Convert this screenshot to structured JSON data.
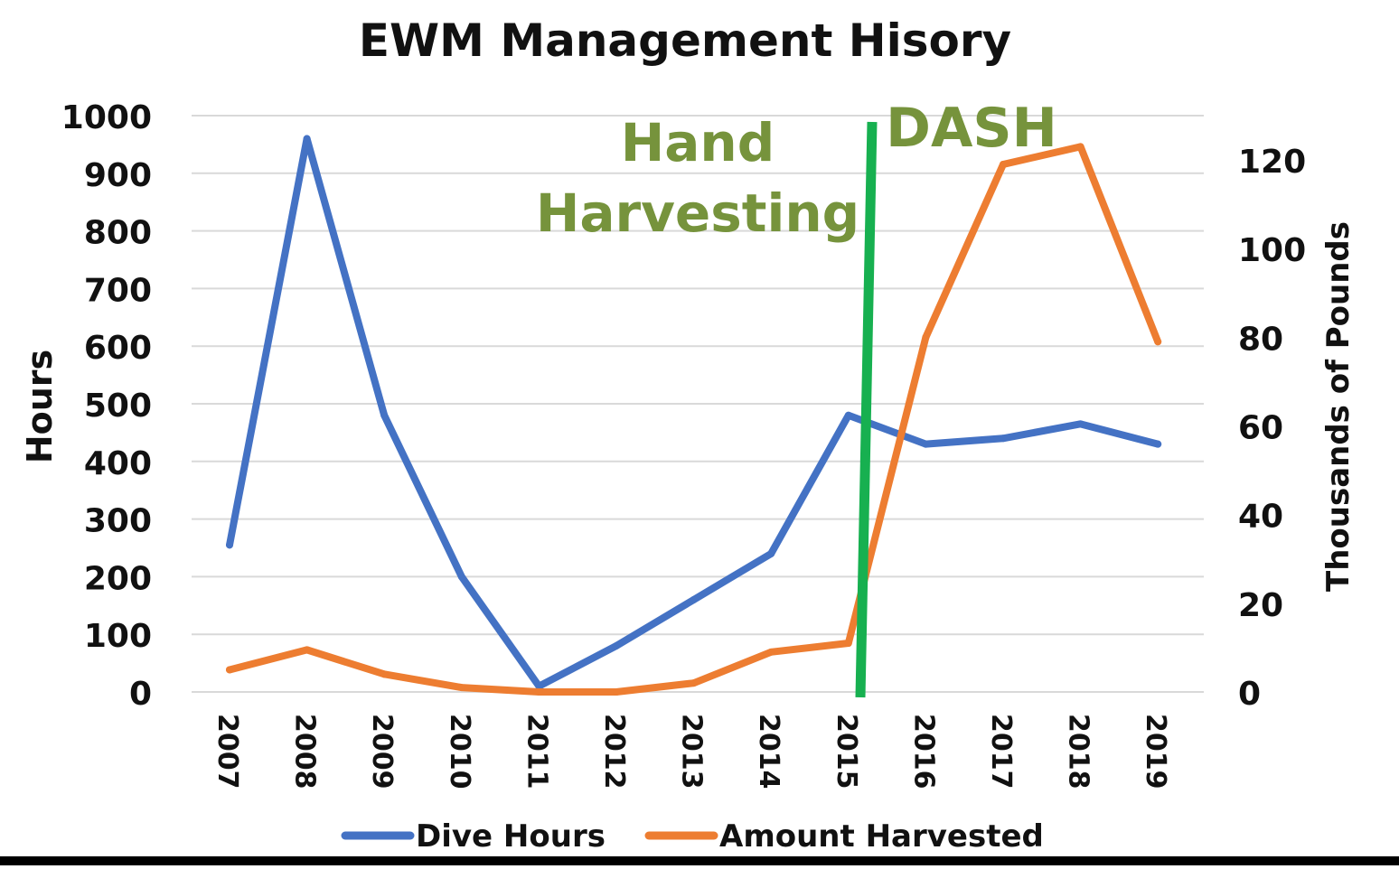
{
  "chart_data": {
    "type": "line",
    "title": "EWM Management Hisory",
    "categories": [
      "2007",
      "2008",
      "2009",
      "2010",
      "2011",
      "2012",
      "2013",
      "2014",
      "2015",
      "2016",
      "2017",
      "2018",
      "2019"
    ],
    "y_left": {
      "label": "Hours",
      "lim": [
        0,
        1000
      ],
      "ticks": [
        0,
        100,
        200,
        300,
        400,
        500,
        600,
        700,
        800,
        900,
        1000
      ]
    },
    "y_right": {
      "label": "Thousands of Pounds",
      "lim": [
        0,
        130
      ],
      "ticks": [
        0,
        20,
        40,
        60,
        80,
        100,
        120
      ]
    },
    "grid": true,
    "legend_position": "bottom",
    "series": [
      {
        "name": "Dive Hours",
        "axis": "left",
        "color": "#4472C4",
        "values": [
          255,
          960,
          480,
          200,
          10,
          80,
          160,
          240,
          480,
          430,
          440,
          465,
          430
        ]
      },
      {
        "name": "Amount Harvested",
        "axis": "right",
        "color": "#ED7D31",
        "values": [
          5,
          9.5,
          4,
          1,
          0,
          0,
          2,
          9,
          11,
          80,
          119,
          123,
          79
        ]
      }
    ],
    "annotations": [
      {
        "text_line1": "Hand",
        "text_line2": "Harvesting",
        "color": "#76933C"
      },
      {
        "text": "DASH",
        "color": "#76933C"
      }
    ],
    "divider": {
      "between": [
        "2015",
        "2016"
      ],
      "color": "#17B050"
    }
  }
}
